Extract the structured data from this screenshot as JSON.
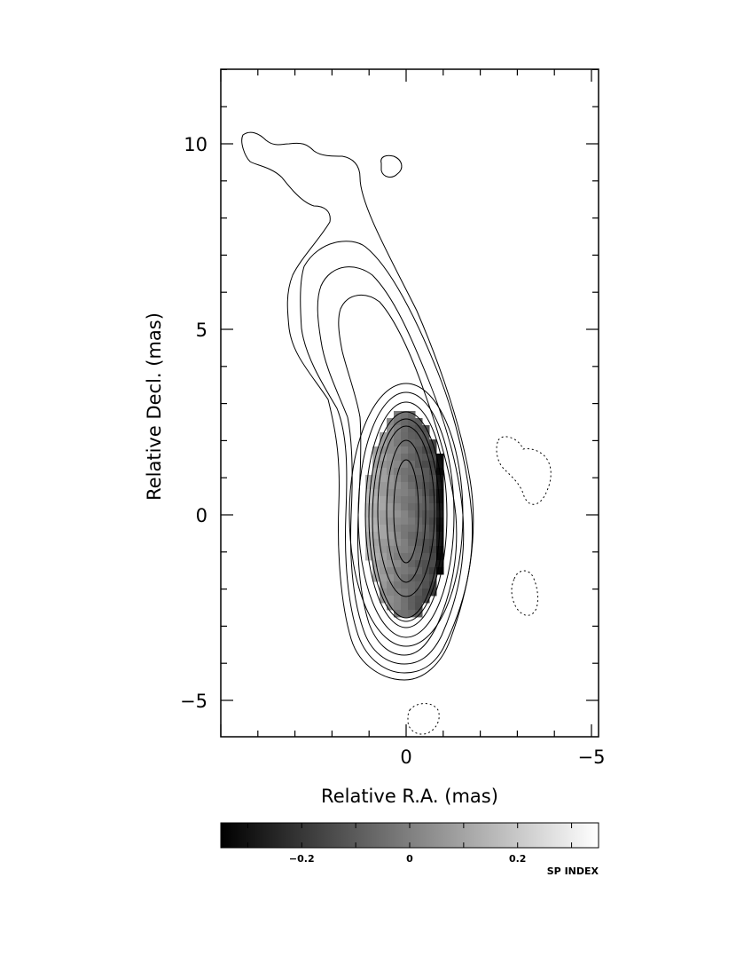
{
  "chart_data": {
    "type": "heatmap",
    "description_kind": "radio contour map with spectral index overlay",
    "xlabel": "Relative R.A. (mas)",
    "ylabel": "Relative Decl. (mas)",
    "xlim": [
      5,
      -5
    ],
    "ylim": [
      -6,
      12
    ],
    "x_reversed": true,
    "xticks": [
      {
        "value": 0,
        "label": "0"
      },
      {
        "value": -5,
        "label": "−5"
      }
    ],
    "yticks": [
      {
        "value": -5,
        "label": "−5"
      },
      {
        "value": 0,
        "label": "0"
      },
      {
        "value": 5,
        "label": "5"
      },
      {
        "value": 10,
        "label": "10"
      }
    ],
    "contours": {
      "core_center": [
        0,
        0
      ],
      "positive_levels_count": 8,
      "negative_level_style": "dotted",
      "negative_regions": [
        {
          "x": -3.2,
          "y": 1.1
        },
        {
          "x": -3.1,
          "y": -2.1
        },
        {
          "x": -0.4,
          "y": -5.5
        }
      ],
      "island": {
        "x": 0.4,
        "y": 9.4
      }
    },
    "colormap": {
      "name": "grayscale",
      "label": "SP INDEX",
      "range": [
        -0.35,
        0.35
      ],
      "ticks": [
        {
          "value": -0.2,
          "label": "−0.2"
        },
        {
          "value": 0,
          "label": "0"
        },
        {
          "value": 0.2,
          "label": "0.2"
        }
      ]
    },
    "spectral_index_region": {
      "center": [
        0,
        0
      ],
      "extent_x": [
        -1.1,
        1.1
      ],
      "extent_y": [
        -2.8,
        2.8
      ],
      "trend": "decreasing toward negative R.A. (west edge darkest)",
      "range": [
        -0.25,
        0.25
      ]
    }
  }
}
